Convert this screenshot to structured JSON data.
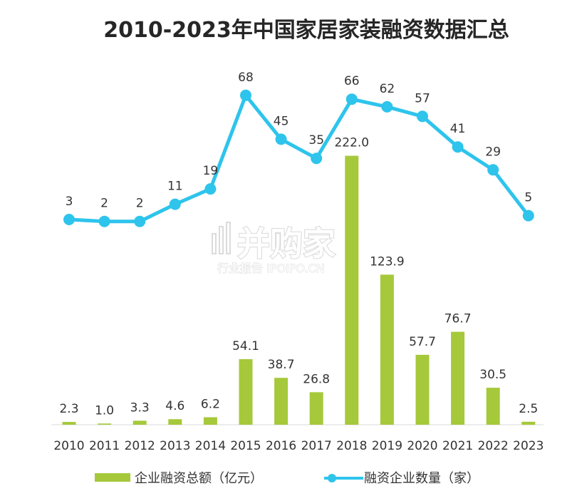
{
  "watermark": {
    "name": "并购家",
    "sub": "行业报告 IPOIPO.CN"
  },
  "chart_data": {
    "type": "bar",
    "title": "2010-2023年中国家居家装融资数据汇总",
    "categories": [
      "2010",
      "2011",
      "2012",
      "2013",
      "2014",
      "2015",
      "2016",
      "2017",
      "2018",
      "2019",
      "2020",
      "2021",
      "2022",
      "2023"
    ],
    "series": [
      {
        "name": "企业融资总额（亿元）",
        "type": "bar",
        "color": "#a5c93a",
        "values": [
          2.3,
          1.0,
          3.3,
          4.6,
          6.2,
          54.1,
          38.7,
          26.8,
          222.0,
          123.9,
          57.7,
          76.7,
          30.5,
          2.5
        ],
        "labels": [
          "2.3",
          "1.0",
          "3.3",
          "4.6",
          "6.2",
          "54.1",
          "38.7",
          "26.8",
          "222.0",
          "123.9",
          "57.7",
          "76.7",
          "30.5",
          "2.5"
        ]
      },
      {
        "name": "融资企业数量（家）",
        "type": "line",
        "color": "#2ec4ec",
        "values": [
          3,
          2,
          2,
          11,
          19,
          68,
          45,
          35,
          66,
          62,
          57,
          41,
          29,
          5
        ],
        "labels": [
          "3",
          "2",
          "2",
          "11",
          "19",
          "68",
          "45",
          "35",
          "66",
          "62",
          "57",
          "41",
          "29",
          "5"
        ]
      }
    ],
    "xlabel": "",
    "ylabel": "",
    "grid": false,
    "legend_position": "bottom"
  }
}
